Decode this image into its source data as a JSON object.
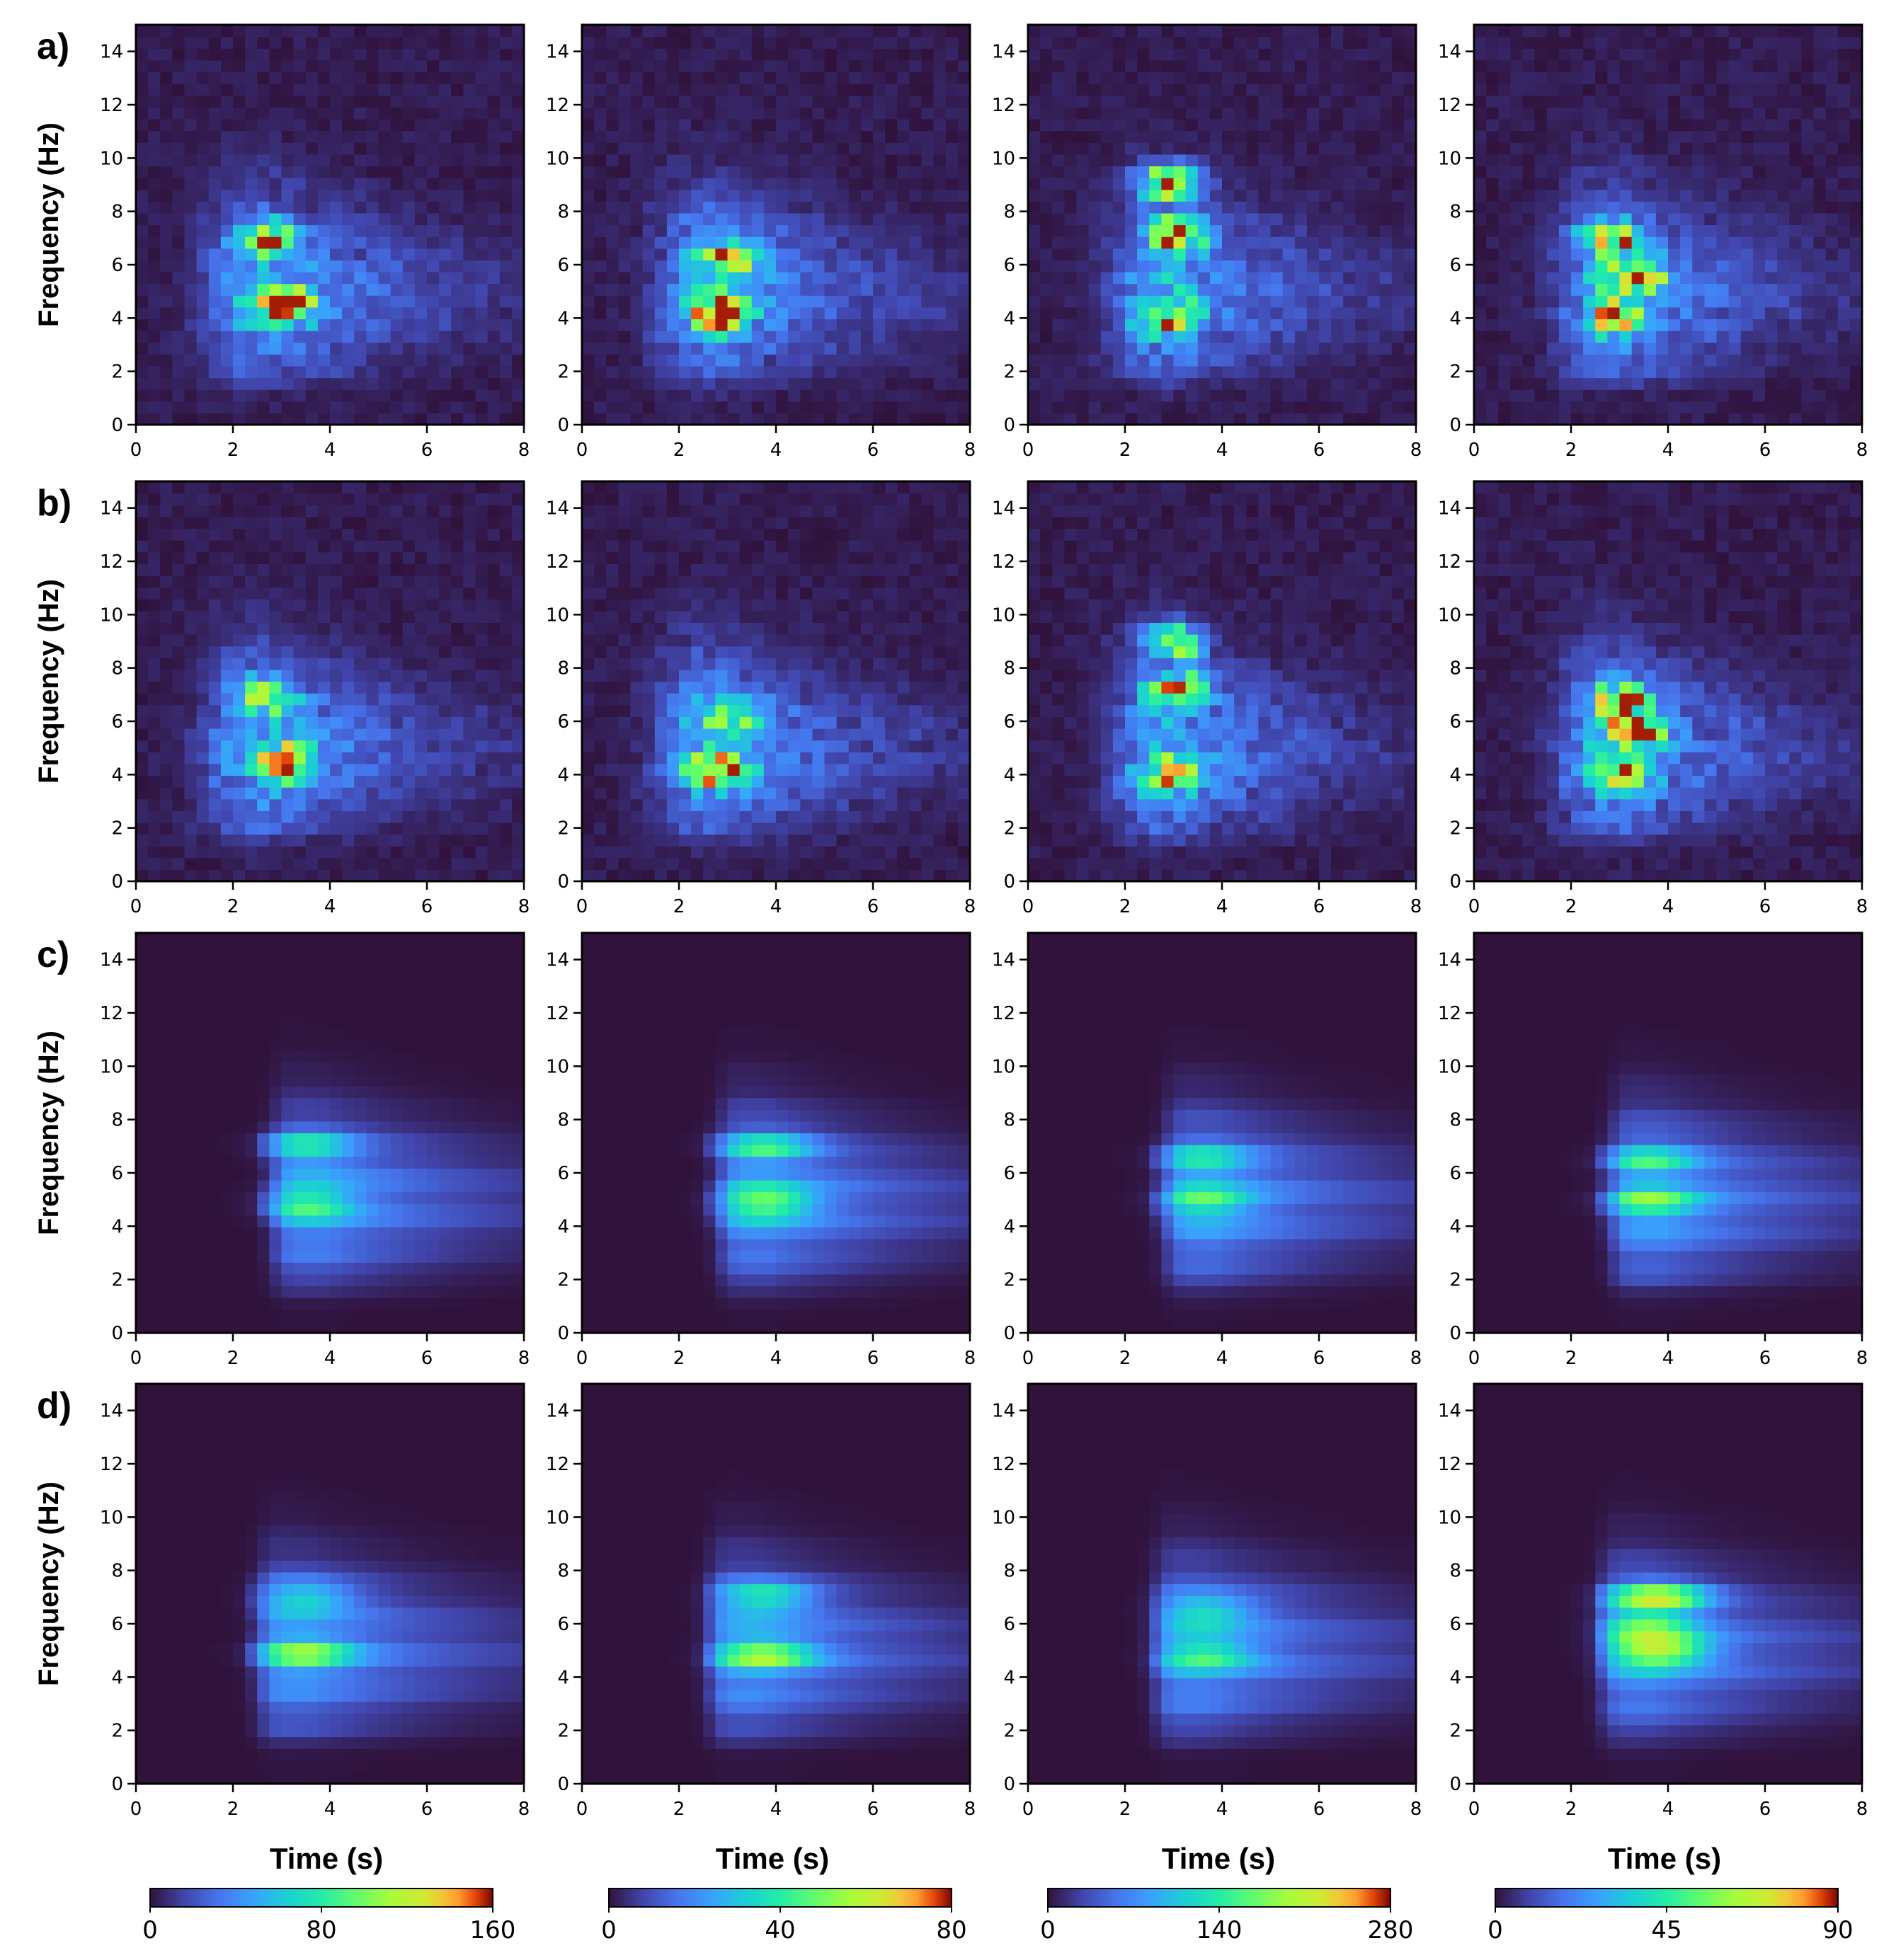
{
  "chart_data": {
    "type": "heatmap",
    "description_rows": [
      "a)",
      "b)",
      "c)",
      "d)"
    ],
    "row_labels": [
      "a)",
      "b)",
      "c)",
      "d)"
    ],
    "ylabel": "Frequency (Hz)",
    "xlabel": "Time (s)",
    "xlim": [
      0,
      8
    ],
    "ylim": [
      0,
      15
    ],
    "xticks": [
      0,
      2,
      4,
      6,
      8
    ],
    "yticks": [
      0,
      2,
      4,
      6,
      8,
      10,
      12,
      14
    ],
    "colormap": "turbo",
    "colorbars": [
      {
        "column": 1,
        "min": 0,
        "mid": 80,
        "max": 160,
        "labels": [
          "0",
          "80",
          "160"
        ]
      },
      {
        "column": 2,
        "min": 0,
        "mid": 40,
        "max": 80,
        "labels": [
          "0",
          "40",
          "80"
        ]
      },
      {
        "column": 3,
        "min": 0,
        "mid": 140,
        "max": 280,
        "labels": [
          "0",
          "140",
          "280"
        ]
      },
      {
        "column": 4,
        "min": 0,
        "mid": 45,
        "max": 90,
        "labels": [
          "0",
          "45",
          "90"
        ]
      }
    ],
    "panels": [
      {
        "row": "a",
        "col": 1,
        "style": "observed",
        "onset": 1.7,
        "decay": 2.6,
        "peaks": [
          {
            "t": 3.1,
            "f": 4.5,
            "a": 1.0
          },
          {
            "t": 2.7,
            "f": 7.0,
            "a": 0.75
          }
        ]
      },
      {
        "row": "a",
        "col": 2,
        "style": "observed",
        "onset": 1.8,
        "decay": 2.6,
        "peaks": [
          {
            "t": 2.8,
            "f": 4.2,
            "a": 1.0
          },
          {
            "t": 3.0,
            "f": 6.2,
            "a": 0.65
          }
        ]
      },
      {
        "row": "a",
        "col": 3,
        "style": "observed",
        "onset": 2.0,
        "decay": 2.3,
        "peaks": [
          {
            "t": 2.9,
            "f": 9.1,
            "a": 1.0
          },
          {
            "t": 3.1,
            "f": 7.2,
            "a": 0.95
          },
          {
            "t": 2.9,
            "f": 4.0,
            "a": 0.7
          }
        ]
      },
      {
        "row": "a",
        "col": 4,
        "style": "observed",
        "onset": 2.0,
        "decay": 2.4,
        "peaks": [
          {
            "t": 3.3,
            "f": 5.5,
            "a": 1.0
          },
          {
            "t": 2.8,
            "f": 7.0,
            "a": 0.85
          },
          {
            "t": 3.0,
            "f": 4.0,
            "a": 0.8
          }
        ]
      },
      {
        "row": "b",
        "col": 1,
        "style": "observed",
        "onset": 1.7,
        "decay": 2.6,
        "peaks": [
          {
            "t": 3.1,
            "f": 4.5,
            "a": 1.0
          },
          {
            "t": 2.7,
            "f": 7.0,
            "a": 0.72
          }
        ]
      },
      {
        "row": "b",
        "col": 2,
        "style": "observed",
        "onset": 1.8,
        "decay": 2.6,
        "peaks": [
          {
            "t": 2.8,
            "f": 4.2,
            "a": 1.0
          },
          {
            "t": 3.0,
            "f": 6.2,
            "a": 0.55
          }
        ]
      },
      {
        "row": "b",
        "col": 3,
        "style": "observed",
        "onset": 2.0,
        "decay": 2.3,
        "peaks": [
          {
            "t": 3.0,
            "f": 9.0,
            "a": 0.95
          },
          {
            "t": 3.1,
            "f": 7.2,
            "a": 0.95
          },
          {
            "t": 2.9,
            "f": 4.0,
            "a": 0.72
          }
        ]
      },
      {
        "row": "b",
        "col": 4,
        "style": "observed",
        "onset": 2.0,
        "decay": 2.4,
        "peaks": [
          {
            "t": 3.3,
            "f": 5.6,
            "a": 1.0
          },
          {
            "t": 3.0,
            "f": 6.8,
            "a": 0.9
          },
          {
            "t": 3.0,
            "f": 4.0,
            "a": 0.8
          }
        ]
      },
      {
        "row": "c",
        "col": 1,
        "style": "model",
        "onset": 2.9,
        "decay": 3.2,
        "peaks": [
          {
            "t": 3.5,
            "f": 4.9,
            "a": 0.45
          },
          {
            "t": 3.5,
            "f": 7.0,
            "a": 0.42
          }
        ]
      },
      {
        "row": "c",
        "col": 2,
        "style": "model",
        "onset": 2.9,
        "decay": 3.2,
        "peaks": [
          {
            "t": 3.8,
            "f": 4.9,
            "a": 0.58
          },
          {
            "t": 3.8,
            "f": 7.0,
            "a": 0.45
          }
        ]
      },
      {
        "row": "c",
        "col": 3,
        "style": "model",
        "onset": 2.9,
        "decay": 3.2,
        "peaks": [
          {
            "t": 3.6,
            "f": 4.9,
            "a": 0.42
          },
          {
            "t": 3.6,
            "f": 6.5,
            "a": 0.36
          }
        ]
      },
      {
        "row": "c",
        "col": 4,
        "style": "model",
        "onset": 2.9,
        "decay": 3.2,
        "peaks": [
          {
            "t": 3.6,
            "f": 4.9,
            "a": 0.45
          },
          {
            "t": 3.6,
            "f": 6.5,
            "a": 0.38
          }
        ]
      },
      {
        "row": "d",
        "col": 1,
        "style": "model",
        "onset": 2.6,
        "decay": 3.3,
        "peaks": [
          {
            "t": 3.5,
            "f": 4.9,
            "a": 0.5
          },
          {
            "t": 3.5,
            "f": 7.0,
            "a": 0.4
          }
        ]
      },
      {
        "row": "d",
        "col": 2,
        "style": "model",
        "onset": 2.7,
        "decay": 3.2,
        "peaks": [
          {
            "t": 3.8,
            "f": 4.9,
            "a": 0.58
          },
          {
            "t": 3.8,
            "f": 7.0,
            "a": 0.5
          }
        ]
      },
      {
        "row": "d",
        "col": 3,
        "style": "model",
        "onset": 2.7,
        "decay": 3.3,
        "peaks": [
          {
            "t": 3.7,
            "f": 4.9,
            "a": 0.42
          },
          {
            "t": 3.7,
            "f": 6.5,
            "a": 0.38
          }
        ]
      },
      {
        "row": "d",
        "col": 4,
        "style": "model",
        "onset": 2.7,
        "decay": 3.2,
        "peaks": [
          {
            "t": 3.8,
            "f": 5.0,
            "a": 0.82
          },
          {
            "t": 3.8,
            "f": 7.0,
            "a": 0.78
          },
          {
            "t": 3.6,
            "f": 6.0,
            "a": 0.45
          }
        ]
      }
    ]
  }
}
